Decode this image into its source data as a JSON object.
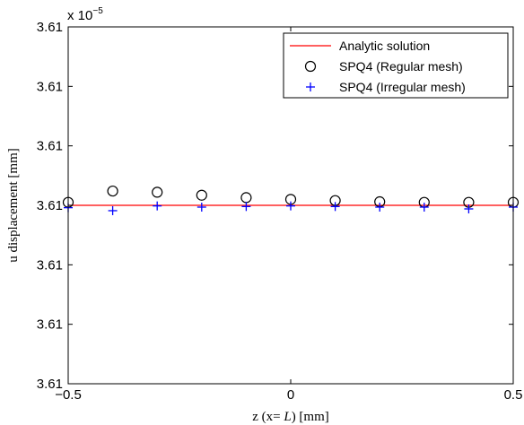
{
  "chart_data": {
    "type": "scatter",
    "xlabel_prefix": "z (x= ",
    "xlabel_var": "L",
    "xlabel_suffix": ") [mm]",
    "ylabel": "u displacement [mm]",
    "y_exponent_base": "x 10",
    "y_exponent_power": "−5",
    "xlim": [
      -0.5,
      0.5
    ],
    "ylim": [
      0,
      6
    ],
    "x_ticks": [
      {
        "value": -0.5,
        "label": "−0.5"
      },
      {
        "value": 0,
        "label": "0"
      },
      {
        "value": 0.5,
        "label": "0.5"
      }
    ],
    "y_ticks": [
      {
        "value": 0,
        "label": "3.61"
      },
      {
        "value": 1,
        "label": "3.61"
      },
      {
        "value": 2,
        "label": "3.61"
      },
      {
        "value": 3,
        "label": "3.61"
      },
      {
        "value": 4,
        "label": "3.61"
      },
      {
        "value": 5,
        "label": "3.61"
      },
      {
        "value": 6,
        "label": "3.61"
      }
    ],
    "grid": false,
    "legend_position": "top-right",
    "series": [
      {
        "name": "Analytic solution",
        "kind": "line",
        "color": "#ff0000",
        "x": [
          -0.5,
          0.5
        ],
        "y": [
          3.0,
          3.0
        ]
      },
      {
        "name": "SPQ4 (Regular mesh)",
        "kind": "circle",
        "color": "#000000",
        "x": [
          -0.5,
          -0.4,
          -0.3,
          -0.2,
          -0.1,
          0.0,
          0.1,
          0.2,
          0.3,
          0.4,
          0.5
        ],
        "y": [
          3.05,
          3.24,
          3.22,
          3.17,
          3.13,
          3.1,
          3.08,
          3.06,
          3.05,
          3.05,
          3.05
        ]
      },
      {
        "name": "SPQ4 (Irregular mesh)",
        "kind": "plus",
        "color": "#0000ff",
        "x": [
          -0.5,
          -0.4,
          -0.3,
          -0.2,
          -0.1,
          0.0,
          0.1,
          0.2,
          0.3,
          0.4,
          0.5
        ],
        "y": [
          2.96,
          2.91,
          2.99,
          2.97,
          2.98,
          2.99,
          2.98,
          2.97,
          2.97,
          2.94,
          2.97
        ]
      }
    ]
  }
}
